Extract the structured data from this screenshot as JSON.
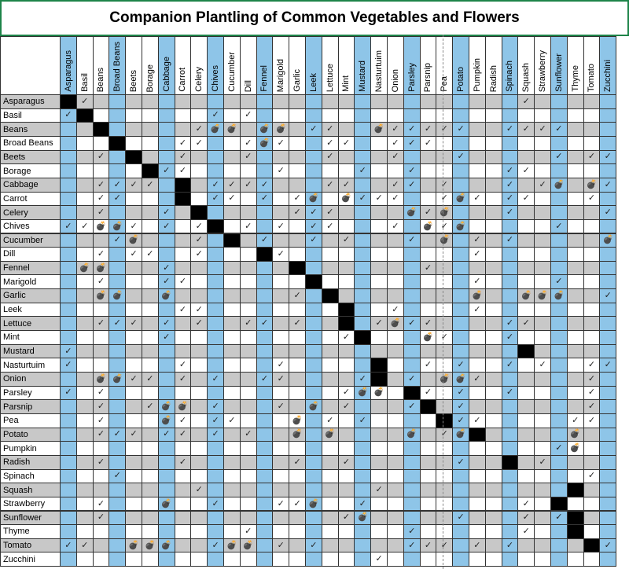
{
  "title": "Companion Plantling of Common Vegetables and Flowers",
  "colors": {
    "blue": "#8ec5e8",
    "gray": "#c8c8c8",
    "white": "#ffffff",
    "diag": "#000000",
    "title_border": "#1e8449"
  },
  "legend_marks": {
    "good": "✓",
    "bad": "💣"
  },
  "plants": [
    "Asparagus",
    "Basil",
    "Beans",
    "Broad Beans",
    "Beets",
    "Borage",
    "Cabbage",
    "Carrot",
    "Celery",
    "Chives",
    "Cucumber",
    "Dill",
    "Fennel",
    "Marigold",
    "Garlic",
    "Leek",
    "Lettuce",
    "Mint",
    "Mustard",
    "Nasturtuim",
    "Onion",
    "Parsley",
    "Parsnip",
    "Pea",
    "Potato",
    "Pumpkin",
    "Radish",
    "Spinach",
    "Squash",
    "Strawberry",
    "Sunflower",
    "Thyme",
    "Tomato",
    "Zucchini"
  ],
  "blue_columns": [
    0,
    3,
    6,
    9,
    12,
    15,
    18,
    21,
    24,
    27,
    30,
    33
  ],
  "grid": [
    "xg..........................g.....",
    "gx.......g.g......................",
    "..x.....gbb.bb.gg..bggggg..gggg...",
    "...x...gg..gbg..gg..ggg...........",
    "..g.x..g...g....g...g...g.....g.gg",
    ".....xgg.....g....g..g.....gg....",
    "..gggg.x.gggg...gg..gg.g...g.gb.bg",
    "..gg...x.gg.g.gb.bggg..gbg.gg...g",
    "..g...g.x.....ggg....bgb...g.....g",
    "ggbbg.g.gx.g.g.gg...g.bgb.....g...",
    "...gb...g.x.g..g.g...g.b.g.g.....b",
    "..g.gg..g...xg...........g........",
    ".bb...g.......x.......g...........",
    "..g...gg.......x.........g....g...",
    "..bb..b.......g.x........b..bbb..g",
    ".......gg........x..g....g........",
    "..ggg.g.g..gg.g..x.gbgg....gg.....",
    "......g..........gx...bg...g......",
    "g...........................x.....",
    "g......g.....g.....x..g.g..g.g..gg",
    "..bbgg.g.g..gg....gx.g.bbg......g.",
    "g.g..............gbb.xg.g..g....g.",
    "..g..gbb.g...g.b.g...gx.g.......g.",
    "..g...bg.gg...b.g.g....xgg.....gg.",
    "..ggg.gg.g.g..b.b....b.gbx.....b..",
    "..............................gb..",
    "..g....g......g..g......g..x.g....",
    "...g............................g.",
    "........g..........g...........x..",
    "..g...b..g...ggb..g.........g.x..",
    "..g..............gb.....g...g.gx..",
    "...........g.........g......g..x..",
    "gg..bbb..gbb.g.g.....ggg.g.g....xg",
    "...................g..............x"
  ]
}
